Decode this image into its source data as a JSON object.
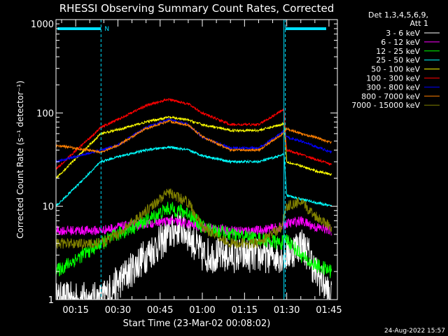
{
  "chart_data": {
    "type": "line",
    "title": "RHESSI Observing Summary Count Rates, Corrected",
    "xlabel": "Start Time (23-Mar-02 00:08:02)",
    "ylabel": "Corrected Count Rate (s⁻¹ detector⁻¹)",
    "x_ticks": [
      "00:15",
      "00:30",
      "00:45",
      "01:00",
      "01:15",
      "01:30",
      "01:45"
    ],
    "x_tick_minutes": [
      15,
      30,
      45,
      60,
      75,
      90,
      105
    ],
    "xlim_minutes": [
      8,
      108
    ],
    "yscale": "log",
    "ylim": [
      1,
      1000
    ],
    "y_ticks": [
      "1",
      "10",
      "100",
      "1000"
    ],
    "y_tick_values": [
      1,
      10,
      100,
      1000
    ],
    "grid": false,
    "legend_position": "top-right",
    "legend_header": [
      "Det 1,3,4,5,6,9,",
      "Att 1"
    ],
    "flag_label": "N",
    "timestamp": "24-Aug-2022 15:57",
    "eclipse_boundaries_minutes": [
      8,
      24,
      89
    ],
    "series": [
      {
        "name": "3 - 6 keV",
        "color": "#ffffff",
        "x": [
          8,
          20,
          24,
          40,
          45,
          48,
          52,
          55,
          60,
          75,
          88,
          90,
          95,
          98,
          100,
          103,
          106
        ],
        "y": [
          1,
          1,
          1,
          3,
          4,
          5,
          6,
          5,
          3,
          3,
          3,
          3,
          4,
          3,
          2,
          1.5,
          1
        ]
      },
      {
        "name": "6 - 12 keV",
        "color": "#ff00ff",
        "x": [
          8,
          24,
          30,
          40,
          48,
          55,
          60,
          70,
          80,
          88,
          90,
          95,
          100,
          106
        ],
        "y": [
          5.5,
          5.5,
          6,
          6.5,
          7,
          6.5,
          6,
          5.5,
          5.5,
          6,
          6.5,
          7,
          6,
          5.5
        ]
      },
      {
        "name": "12 - 25 keV",
        "color": "#00ff00",
        "x": [
          8,
          24,
          30,
          40,
          48,
          55,
          60,
          70,
          80,
          88,
          90,
          95,
          98,
          106
        ],
        "y": [
          2,
          4,
          5,
          7,
          9.5,
          8.5,
          6,
          5,
          4.5,
          4,
          4.5,
          3,
          2.5,
          2
        ]
      },
      {
        "name": "25 - 50 keV",
        "color": "#00ffff",
        "x": [
          8,
          24,
          30,
          40,
          48,
          55,
          60,
          70,
          80,
          88,
          89,
          90,
          95,
          100,
          106
        ],
        "y": [
          10,
          30,
          34,
          40,
          43,
          40,
          35,
          30,
          30,
          35,
          36,
          13,
          12,
          11,
          10
        ]
      },
      {
        "name": "50 - 100 keV",
        "color": "#ffff00",
        "x": [
          8,
          24,
          30,
          40,
          48,
          55,
          60,
          70,
          80,
          88,
          89,
          90,
          95,
          100,
          106
        ],
        "y": [
          20,
          60,
          66,
          80,
          90,
          84,
          75,
          65,
          65,
          75,
          78,
          30,
          27,
          24,
          22
        ]
      },
      {
        "name": "100 - 300 keV",
        "color": "#ff0000",
        "x": [
          8,
          24,
          30,
          40,
          48,
          55,
          60,
          70,
          80,
          88,
          89,
          90,
          95,
          100,
          106
        ],
        "y": [
          25,
          70,
          85,
          120,
          140,
          125,
          100,
          75,
          75,
          105,
          110,
          40,
          36,
          32,
          28
        ]
      },
      {
        "name": "300 - 800 keV",
        "color": "#0000ff",
        "x": [
          8,
          24,
          30,
          40,
          48,
          55,
          60,
          70,
          80,
          88,
          89,
          90,
          95,
          100,
          106
        ],
        "y": [
          30,
          40,
          45,
          70,
          85,
          75,
          55,
          42,
          42,
          60,
          65,
          55,
          50,
          44,
          38
        ]
      },
      {
        "name": "800 - 7000 keV",
        "color": "#ff8000",
        "x": [
          8,
          24,
          30,
          40,
          48,
          55,
          60,
          70,
          80,
          88,
          89,
          90,
          95,
          100,
          106
        ],
        "y": [
          45,
          38,
          45,
          68,
          82,
          74,
          56,
          40,
          40,
          58,
          62,
          68,
          60,
          55,
          48
        ]
      },
      {
        "name": "7000 - 15000 keV",
        "color": "#808000",
        "x": [
          8,
          24,
          30,
          40,
          45,
          48,
          55,
          60,
          70,
          80,
          88,
          90,
          95,
          100,
          106
        ],
        "y": [
          4,
          4,
          5,
          9,
          12,
          14,
          11,
          6,
          4,
          4,
          6,
          10,
          11,
          8,
          6
        ]
      }
    ]
  }
}
